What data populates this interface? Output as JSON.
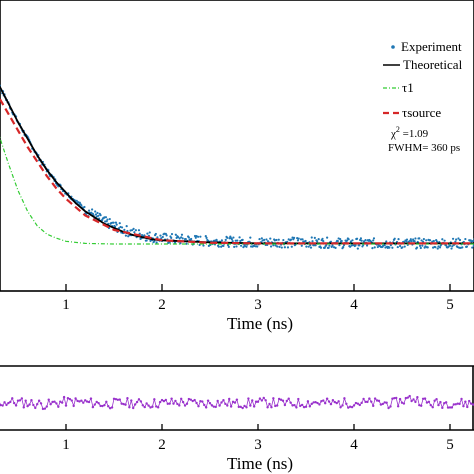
{
  "chart_data": [
    {
      "type": "scatter",
      "title": "",
      "xlabel": "Time (ns)",
      "ylabel": "",
      "xlim": [
        -0.7,
        5.3
      ],
      "ylim": [
        -0.2,
        1.15
      ],
      "x_ticks": [
        "1",
        "2",
        "3",
        "4",
        "5"
      ],
      "grid": false,
      "legend_position": "top-right",
      "series": [
        {
          "name": "Experiment",
          "style": "scatter",
          "color": "#1f77b4",
          "x": [
            0.0,
            0.1,
            0.2,
            0.3,
            0.4,
            0.5,
            0.6,
            0.7,
            0.8,
            0.9,
            1.0,
            1.1,
            1.2,
            1.3,
            1.4,
            1.5,
            1.6,
            1.7,
            1.8,
            1.9,
            2.0,
            2.5,
            3.0,
            3.5,
            4.0,
            4.5,
            5.0,
            5.3
          ],
          "y": [
            0.98,
            0.93,
            0.86,
            0.78,
            0.69,
            0.6,
            0.52,
            0.44,
            0.37,
            0.31,
            0.26,
            0.22,
            0.18,
            0.15,
            0.12,
            0.1,
            0.08,
            0.065,
            0.055,
            0.045,
            0.04,
            0.025,
            0.02,
            0.02,
            0.015,
            0.015,
            0.015,
            0.015
          ]
        },
        {
          "name": "Theoretical",
          "style": "line",
          "color": "#000000",
          "x": [
            0.0,
            0.1,
            0.2,
            0.3,
            0.4,
            0.5,
            0.6,
            0.7,
            0.8,
            0.9,
            1.0,
            1.1,
            1.2,
            1.3,
            1.4,
            1.5,
            1.6,
            1.7,
            1.8,
            1.9,
            2.0,
            2.5,
            3.0,
            3.5,
            4.0,
            4.5,
            5.0,
            5.3
          ],
          "y": [
            0.98,
            0.93,
            0.86,
            0.78,
            0.69,
            0.6,
            0.52,
            0.44,
            0.37,
            0.31,
            0.26,
            0.21,
            0.17,
            0.14,
            0.11,
            0.09,
            0.07,
            0.055,
            0.045,
            0.035,
            0.03,
            0.02,
            0.015,
            0.015,
            0.015,
            0.015,
            0.015,
            0.015
          ]
        },
        {
          "name": "τ1",
          "style": "dash-dot",
          "color": "#33cc33",
          "x": [
            -0.7,
            0.0,
            0.1,
            0.2,
            0.3,
            0.4,
            0.5,
            0.6,
            0.7,
            0.8,
            0.9,
            1.0,
            1.2,
            1.5,
            2.0,
            3.0,
            5.3
          ],
          "y": [
            0.6,
            0.88,
            0.8,
            0.68,
            0.54,
            0.4,
            0.27,
            0.17,
            0.1,
            0.06,
            0.04,
            0.025,
            0.015,
            0.012,
            0.012,
            0.012,
            0.012
          ]
        },
        {
          "name": "τsource",
          "style": "dashed",
          "color": "#d62728",
          "x": [
            -0.7,
            0.0,
            0.1,
            0.2,
            0.3,
            0.4,
            0.5,
            0.6,
            0.7,
            0.8,
            0.9,
            1.0,
            1.2,
            1.5,
            2.0,
            2.5,
            3.0,
            4.0,
            5.3
          ],
          "y": [
            0.78,
            0.9,
            0.85,
            0.79,
            0.72,
            0.64,
            0.56,
            0.48,
            0.41,
            0.34,
            0.28,
            0.23,
            0.15,
            0.08,
            0.03,
            0.018,
            0.015,
            0.015,
            0.015
          ]
        }
      ],
      "annotations": {
        "chi_prefix": "χ",
        "chi_exp": "2",
        "chi_value": " =1.09",
        "fwhm": "FWHM= 360 ps"
      }
    },
    {
      "type": "line",
      "title": "",
      "xlabel": "Time (ns)",
      "ylabel": "",
      "xlim": [
        -0.7,
        5.3
      ],
      "ylim": [
        -1,
        1
      ],
      "x_ticks": [
        "1",
        "2",
        "3",
        "4",
        "5"
      ],
      "grid": false,
      "series": [
        {
          "name": "",
          "color": "#9932cc",
          "style": "line-with-markers",
          "x": [
            -0.6,
            -0.4,
            -0.2,
            0.0,
            0.2,
            0.4,
            0.6,
            0.8,
            1.0,
            1.2,
            1.4,
            1.6,
            1.8,
            2.0,
            2.2,
            2.4,
            2.6,
            2.8,
            3.0,
            3.2,
            3.4,
            3.6,
            3.8,
            4.0,
            4.2,
            4.4,
            4.6,
            4.8,
            5.0,
            5.2
          ],
          "y": [
            0.1,
            -0.05,
            0.15,
            0.05,
            -0.1,
            0.08,
            0.0,
            -0.12,
            0.1,
            0.05,
            -0.08,
            0.02,
            -0.05,
            0.0,
            0.06,
            -0.04,
            0.03,
            -0.06,
            0.04,
            0.0,
            -0.03,
            0.05,
            -0.02,
            0.03,
            0.0,
            -0.04,
            0.35,
            -0.05,
            0.02,
            -0.03
          ]
        }
      ]
    }
  ]
}
